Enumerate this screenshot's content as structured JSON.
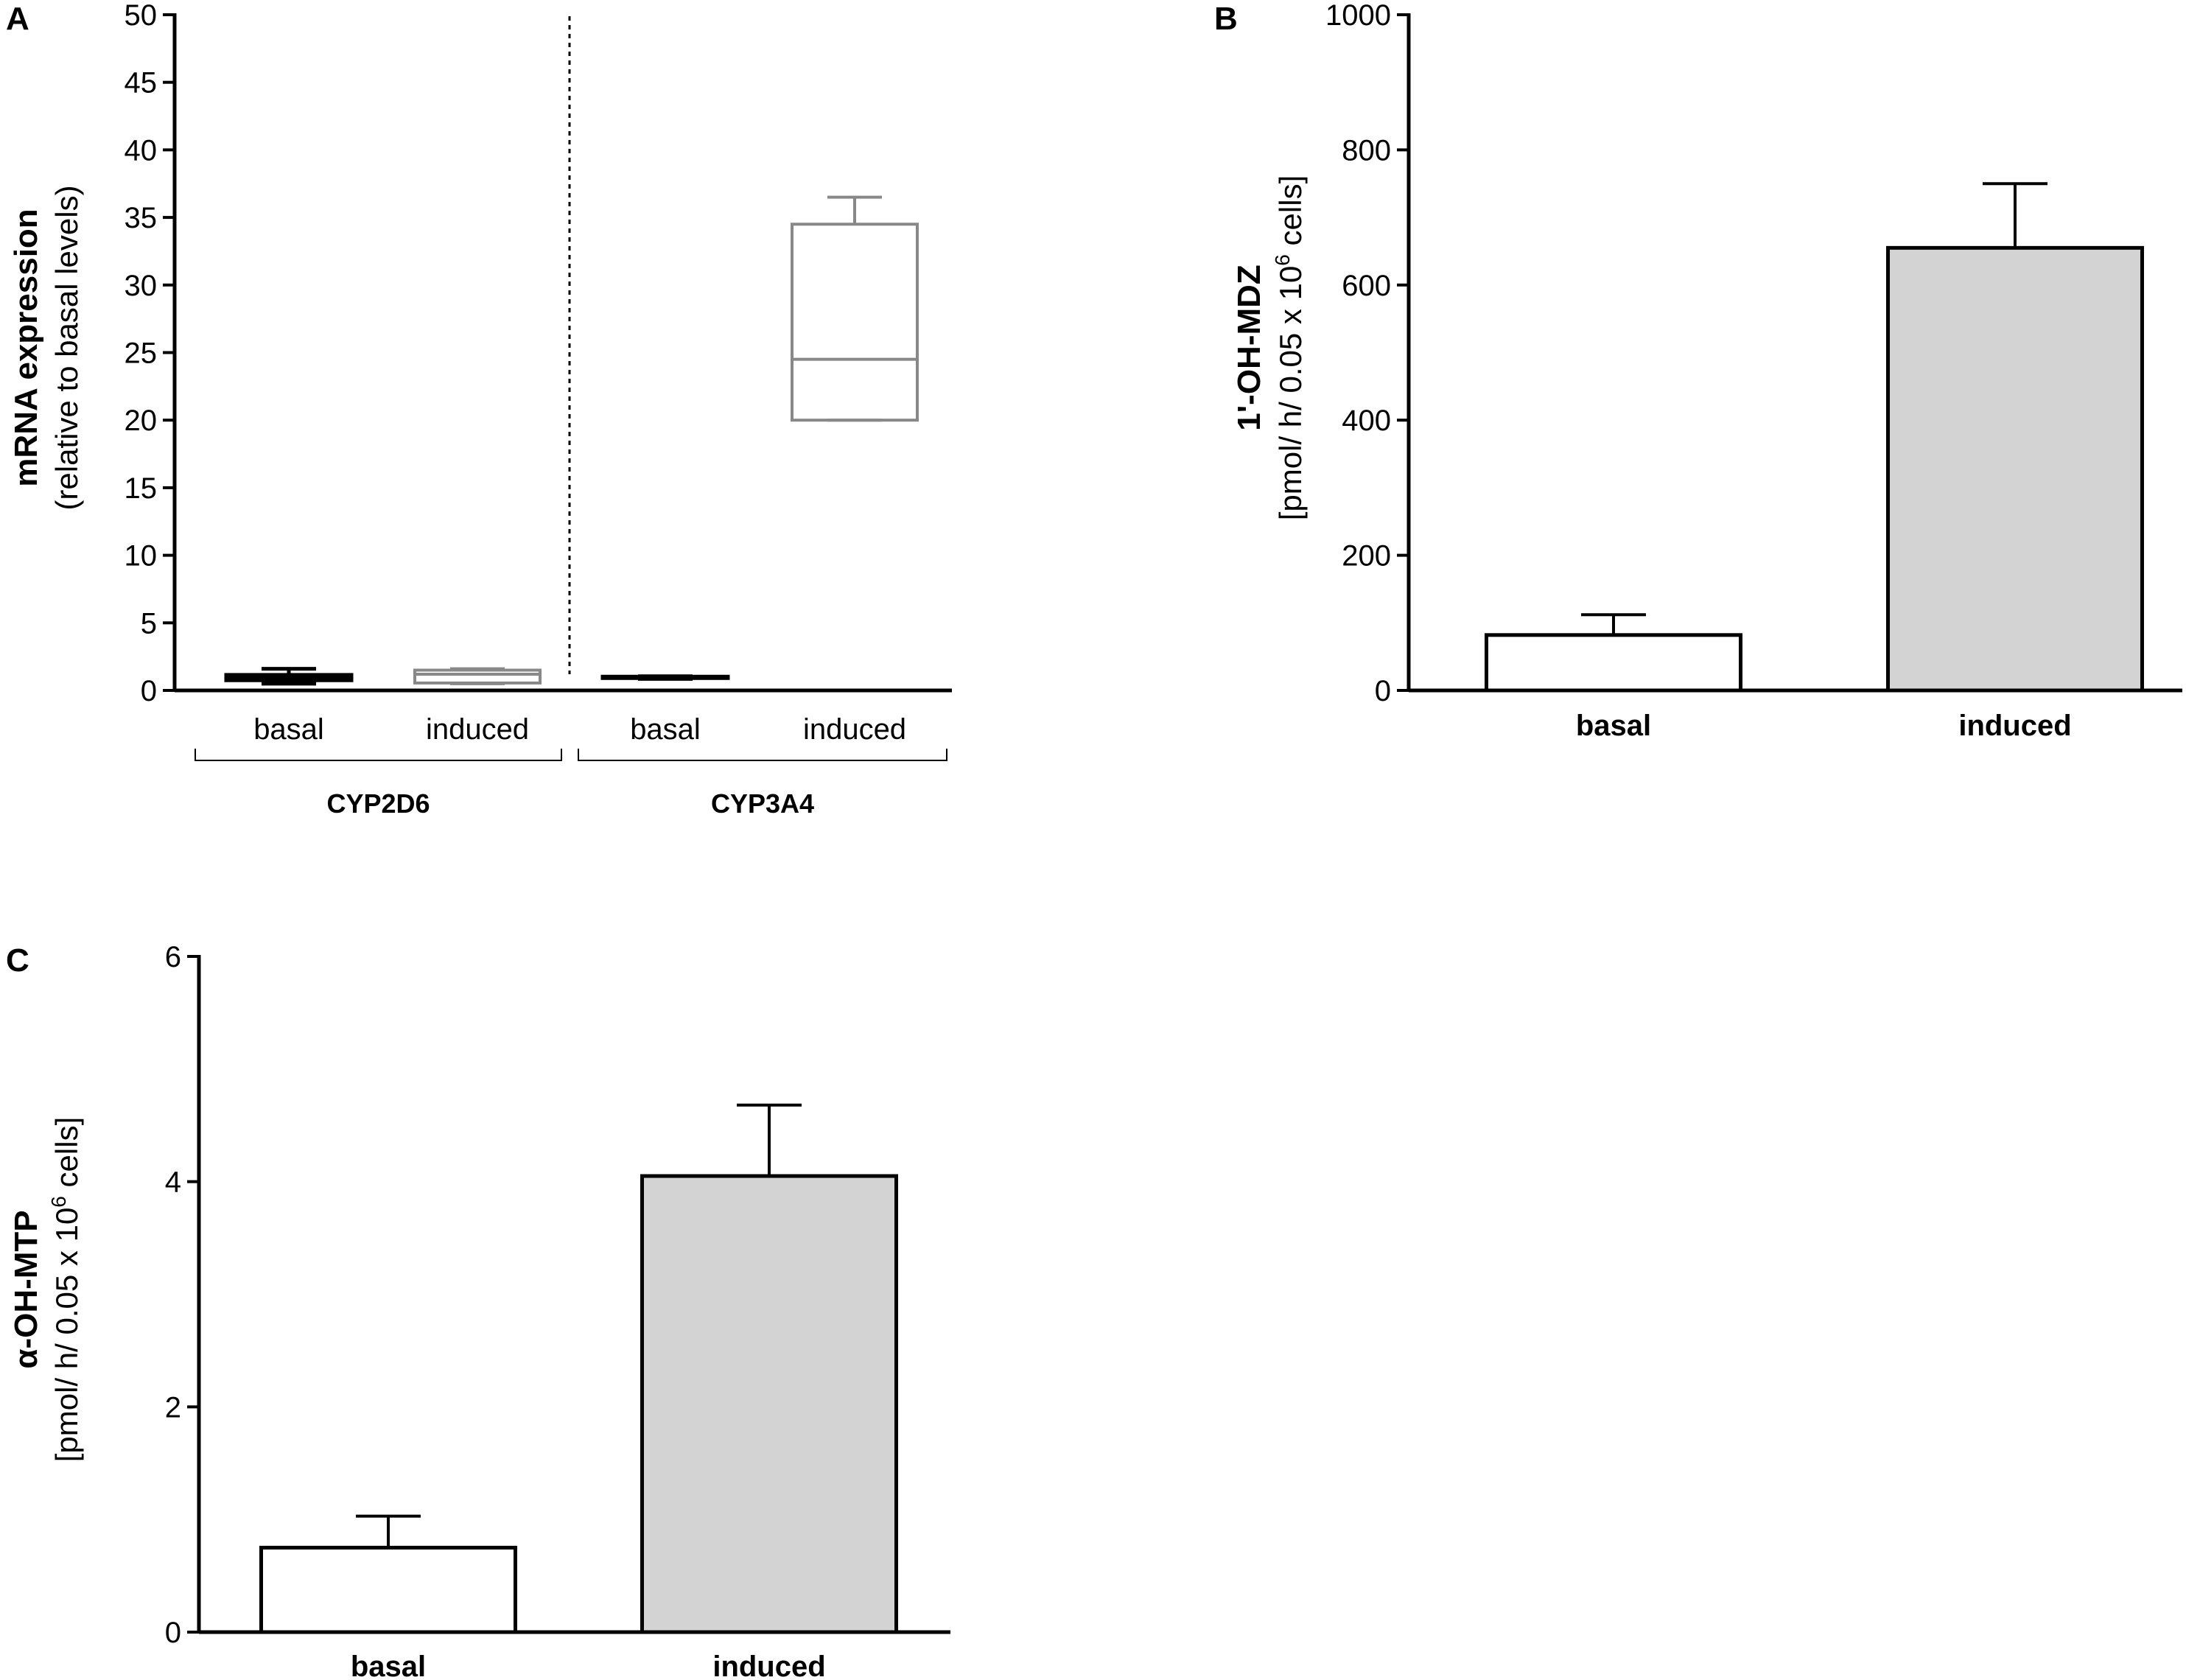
{
  "panels": {
    "A": {
      "letter": "A",
      "ylabel_main": "mRNA expression",
      "ylabel_sub": "(relative to basal levels)"
    },
    "B": {
      "letter": "B",
      "ylabel_main": "1'-OH-MDZ",
      "ylabel_sub_pre": "[pmol/ h/ 0.05 x 10",
      "ylabel_sub_sup": "6",
      "ylabel_sub_post": " cells]"
    },
    "C": {
      "letter": "C",
      "ylabel_main": "α-OH-MTP",
      "ylabel_sub_pre": "[pmol/ h/ 0.05 x 10",
      "ylabel_sub_sup": "6",
      "ylabel_sub_post": " cells]"
    }
  },
  "chart_data": [
    {
      "panel": "A",
      "type": "box",
      "ylim": [
        0,
        50
      ],
      "yticks": [
        0,
        5,
        10,
        15,
        20,
        25,
        30,
        35,
        40,
        45,
        50
      ],
      "groups": [
        {
          "name": "CYP2D6",
          "boxes": [
            {
              "label": "basal",
              "color": "#000000",
              "min": 0.5,
              "q1": 0.75,
              "median": 1.0,
              "q3": 1.15,
              "max": 1.6
            },
            {
              "label": "induced",
              "color": "#888888",
              "min": 0.5,
              "q1": 0.55,
              "median": 1.2,
              "q3": 1.5,
              "max": 1.6
            }
          ]
        },
        {
          "name": "CYP3A4",
          "boxes": [
            {
              "label": "basal",
              "color": "#000000",
              "min": 0.85,
              "q1": 0.95,
              "median": 1.0,
              "q3": 1.02,
              "max": 1.05
            },
            {
              "label": "induced",
              "color": "#888888",
              "min": 20,
              "q1": 20,
              "median": 24.5,
              "q3": 34.5,
              "max": 36.5
            }
          ]
        }
      ]
    },
    {
      "panel": "B",
      "type": "bar",
      "categories": [
        "basal",
        "induced"
      ],
      "values": [
        82,
        655
      ],
      "errors": [
        30,
        95
      ],
      "colors": [
        "#ffffff",
        "#d3d3d3"
      ],
      "ylim": [
        0,
        1000
      ],
      "yticks": [
        0,
        200,
        400,
        600,
        800,
        1000
      ]
    },
    {
      "panel": "C",
      "type": "bar",
      "categories": [
        "basal",
        "induced"
      ],
      "values": [
        0.75,
        4.05
      ],
      "errors": [
        0.28,
        0.63
      ],
      "colors": [
        "#ffffff",
        "#d3d3d3"
      ],
      "ylim": [
        0,
        6
      ],
      "yticks": [
        0,
        2,
        4,
        6
      ]
    }
  ]
}
